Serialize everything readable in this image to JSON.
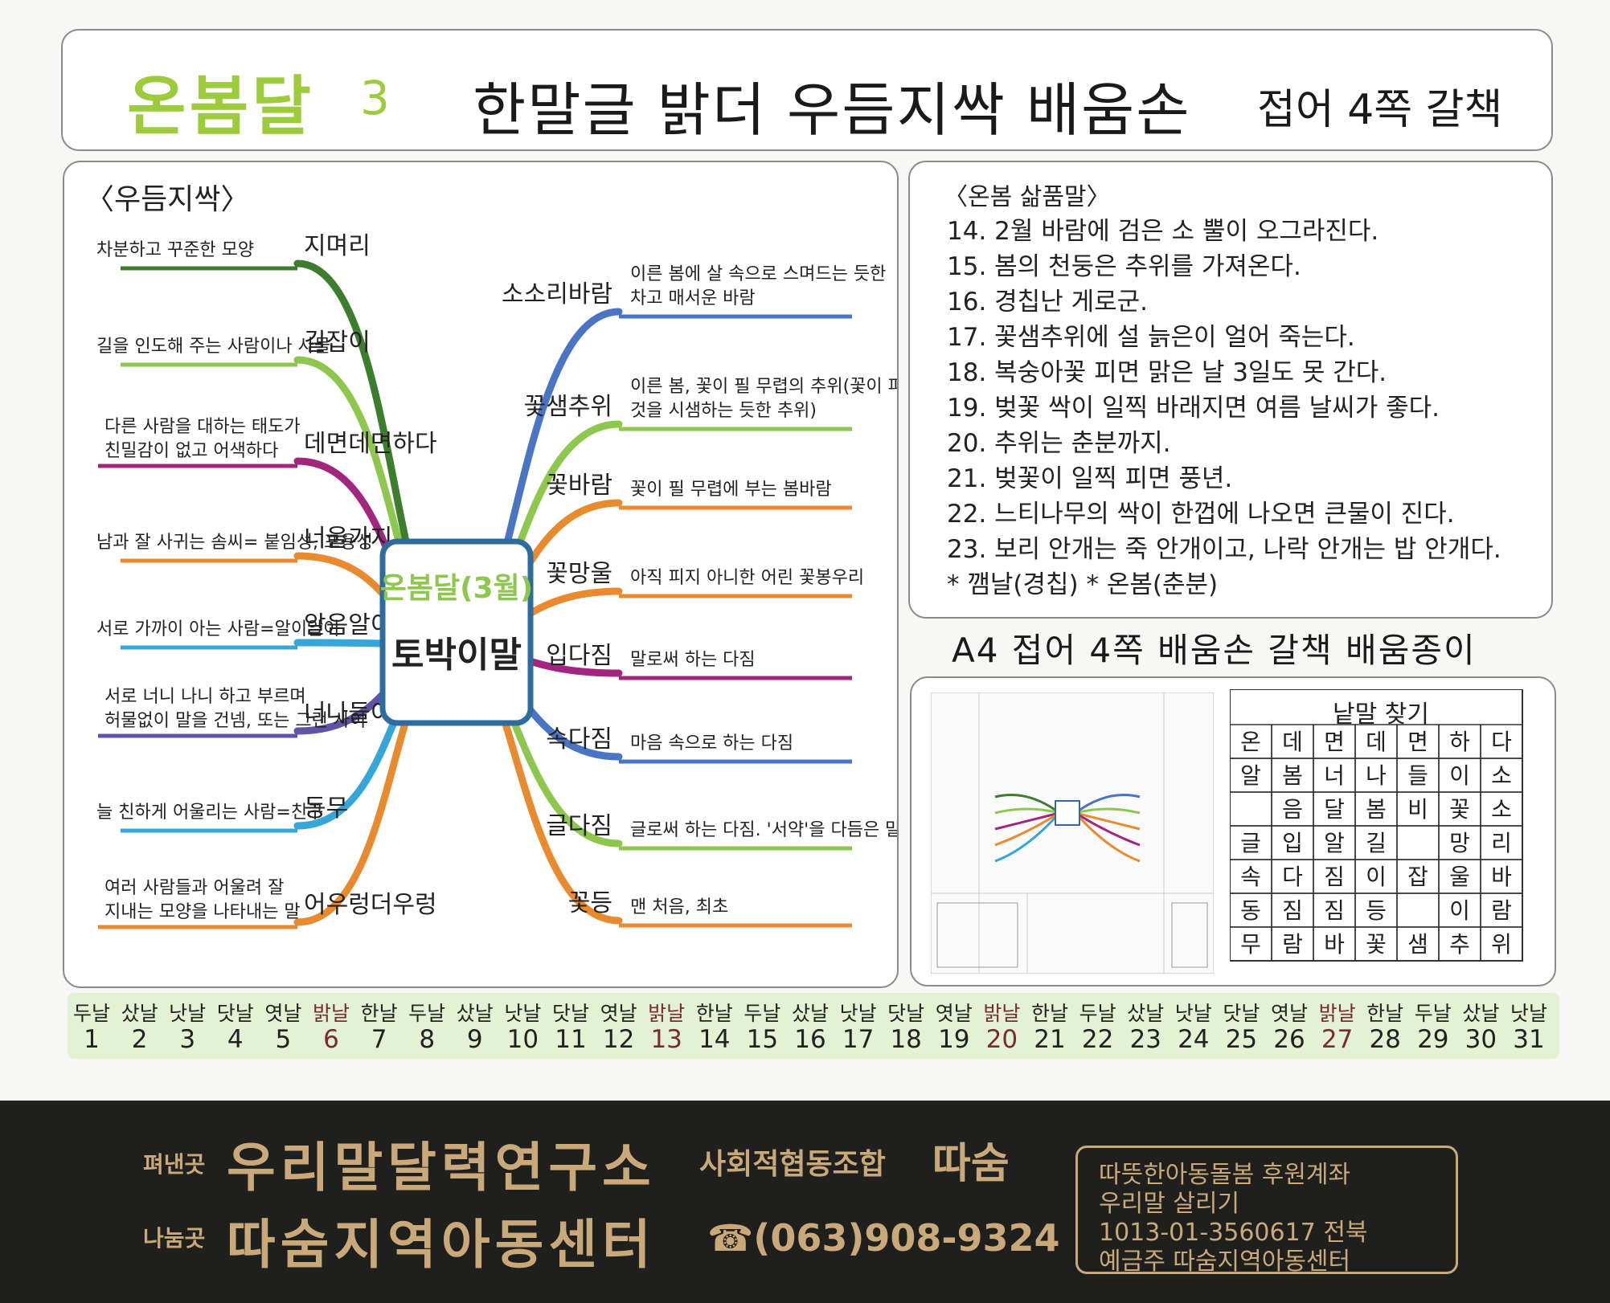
{
  "header": {
    "brand": "온봄달",
    "brand_num": "3",
    "title": "한말글 밝더 우듬지싹 배움손",
    "subtitle": "접어 4쪽 갈책"
  },
  "mindmap": {
    "section_label": "〈우듬지싹〉",
    "center_line1": "온봄달(3월)",
    "center_line2": "토박이말",
    "left": [
      {
        "word": "지며리",
        "def1": "차분하고 꾸준한 모양",
        "def2": "",
        "color": "#3d7d2e"
      },
      {
        "word": "길잡이",
        "def1": "길을 인도해 주는 사람이나 사물",
        "def2": "",
        "color": "#8dc74e"
      },
      {
        "word": "데면데면하다",
        "def1": "다른 사람을 대하는 태도가",
        "def2": "친밀감이 없고 어색하다",
        "color": "#a3267e"
      },
      {
        "word": "너울가지",
        "def1": "남과 잘 사귀는 솜씨= 붙임성, 포용성",
        "def2": "",
        "color": "#e88a2d"
      },
      {
        "word": "알음알이",
        "def1": "서로 가까이 아는 사람=알이알이",
        "def2": "",
        "color": "#35a6d8"
      },
      {
        "word": "너나들이",
        "def1": "서로 너니 나니 하고 부르며",
        "def2": "허물없이 말을 건넴, 또는 그런 사이",
        "color": "#5f54a8"
      },
      {
        "word": "동무",
        "def1": "늘 친하게 어울리는 사람=친구",
        "def2": "",
        "color": "#35a6d8"
      },
      {
        "word": "어우렁더우렁",
        "def1": "여러 사람들과 어울려 잘",
        "def2": "지내는 모양을 나타내는 말",
        "color": "#e88a2d"
      }
    ],
    "right": [
      {
        "word": "소소리바람",
        "def1": "이른 봄에 살 속으로 스며드는 듯한",
        "def2": "차고 매서운 바람",
        "color": "#4a74c4"
      },
      {
        "word": "꽃샘추위",
        "def1": "이른 봄, 꽃이 필 무렵의 추위(꽃이 피는",
        "def2": "것을 시샘하는 듯한 추위)",
        "color": "#8dc74e"
      },
      {
        "word": "꽃바람",
        "def1": "꽃이 필 무렵에 부는 봄바람",
        "def2": "",
        "color": "#e88a2d"
      },
      {
        "word": "꽃망울",
        "def1": "아직 피지 아니한 어린 꽃봉우리",
        "def2": "",
        "color": "#e88a2d"
      },
      {
        "word": "입다짐",
        "def1": "말로써 하는 다짐",
        "def2": "",
        "color": "#a3267e"
      },
      {
        "word": "속다짐",
        "def1": "마음 속으로 하는 다짐",
        "def2": "",
        "color": "#4a74c4"
      },
      {
        "word": "글다짐",
        "def1": "글로써 하는 다짐. '서약'을 다듬은 말",
        "def2": "",
        "color": "#8dc74e"
      },
      {
        "word": "꽃등",
        "def1": "맨 처음, 최초",
        "def2": "",
        "color": "#e88a2d"
      }
    ]
  },
  "sayings": {
    "label": "〈온봄 삶품말〉",
    "lines": [
      "14. 2월 바람에 검은 소 뿔이 오그라진다.",
      "15. 봄의 천둥은 추위를 가져온다.",
      "16. 경칩난 게로군.",
      "17. 꽃샘추위에 설 늙은이 얼어 죽는다.",
      "18. 복숭아꽃 피면 맑은 날 3일도 못 간다.",
      "19. 벚꽃 싹이 일찍 바래지면 여름 날씨가 좋다.",
      "20. 추위는 춘분까지.",
      "21. 벚꽃이 일찍 피면 풍년.",
      "22. 느티나무의 싹이 한껍에 나오면 큰물이 진다.",
      "23. 보리 안개는 죽 안개이고, 나락 안개는 밥 안개다.",
      "* 깸날(경칩) * 온봄(춘분)"
    ]
  },
  "a4_title": "A4 접어 4쪽 배움손 갈책 배움종이",
  "word_search": {
    "title": "낱말 찾기",
    "rows": [
      [
        "온",
        "데",
        "면",
        "데",
        "면",
        "하",
        "다"
      ],
      [
        "알",
        "봄",
        "너",
        "나",
        "들",
        "이",
        "소"
      ],
      [
        "",
        "음",
        "달",
        "봄",
        "비",
        "꽃",
        "소"
      ],
      [
        "글",
        "입",
        "알",
        "길",
        "",
        "망",
        "리"
      ],
      [
        "속",
        "다",
        "짐",
        "이",
        "잡",
        "울",
        "바"
      ],
      [
        "동",
        "짐",
        "짐",
        "등",
        "",
        "이",
        "람"
      ],
      [
        "무",
        "람",
        "바",
        "꽃",
        "샘",
        "추",
        "위"
      ]
    ]
  },
  "calendar": {
    "days": [
      {
        "name": "두날",
        "date": "1",
        "red": false
      },
      {
        "name": "샀날",
        "date": "2",
        "red": false
      },
      {
        "name": "낫날",
        "date": "3",
        "red": false
      },
      {
        "name": "닷날",
        "date": "4",
        "red": false
      },
      {
        "name": "엿날",
        "date": "5",
        "red": false
      },
      {
        "name": "밝날",
        "date": "6",
        "red": true
      },
      {
        "name": "한날",
        "date": "7",
        "red": false
      },
      {
        "name": "두날",
        "date": "8",
        "red": false
      },
      {
        "name": "샀날",
        "date": "9",
        "red": false
      },
      {
        "name": "낫날",
        "date": "10",
        "red": false
      },
      {
        "name": "닷날",
        "date": "11",
        "red": false
      },
      {
        "name": "엿날",
        "date": "12",
        "red": false
      },
      {
        "name": "밝날",
        "date": "13",
        "red": true
      },
      {
        "name": "한날",
        "date": "14",
        "red": false
      },
      {
        "name": "두날",
        "date": "15",
        "red": false
      },
      {
        "name": "샀날",
        "date": "16",
        "red": false
      },
      {
        "name": "낫날",
        "date": "17",
        "red": false
      },
      {
        "name": "닷날",
        "date": "18",
        "red": false
      },
      {
        "name": "엿날",
        "date": "19",
        "red": false
      },
      {
        "name": "밝날",
        "date": "20",
        "red": true
      },
      {
        "name": "한날",
        "date": "21",
        "red": false
      },
      {
        "name": "두날",
        "date": "22",
        "red": false
      },
      {
        "name": "샀날",
        "date": "23",
        "red": false
      },
      {
        "name": "낫날",
        "date": "24",
        "red": false
      },
      {
        "name": "닷날",
        "date": "25",
        "red": false
      },
      {
        "name": "엿날",
        "date": "26",
        "red": false
      },
      {
        "name": "밝날",
        "date": "27",
        "red": true
      },
      {
        "name": "한날",
        "date": "28",
        "red": false
      },
      {
        "name": "두날",
        "date": "29",
        "red": false
      },
      {
        "name": "샀날",
        "date": "30",
        "red": false
      },
      {
        "name": "낫날",
        "date": "31",
        "red": false
      }
    ]
  },
  "footer": {
    "publisher_label": "펴낸곳",
    "publisher": "우리말달력연구소",
    "coop": "사회적협동조합",
    "coop_name": "따숨",
    "sharer_label": "나눔곳",
    "sharer": "따숨지역아동센터",
    "phone": "☎(063)908-9324",
    "account_lines": [
      "따뜻한아동돌봄 후원계좌",
      "우리말 살리기",
      "1013-01-3560617 전북",
      "예금주 따숨지역아동센터"
    ]
  }
}
